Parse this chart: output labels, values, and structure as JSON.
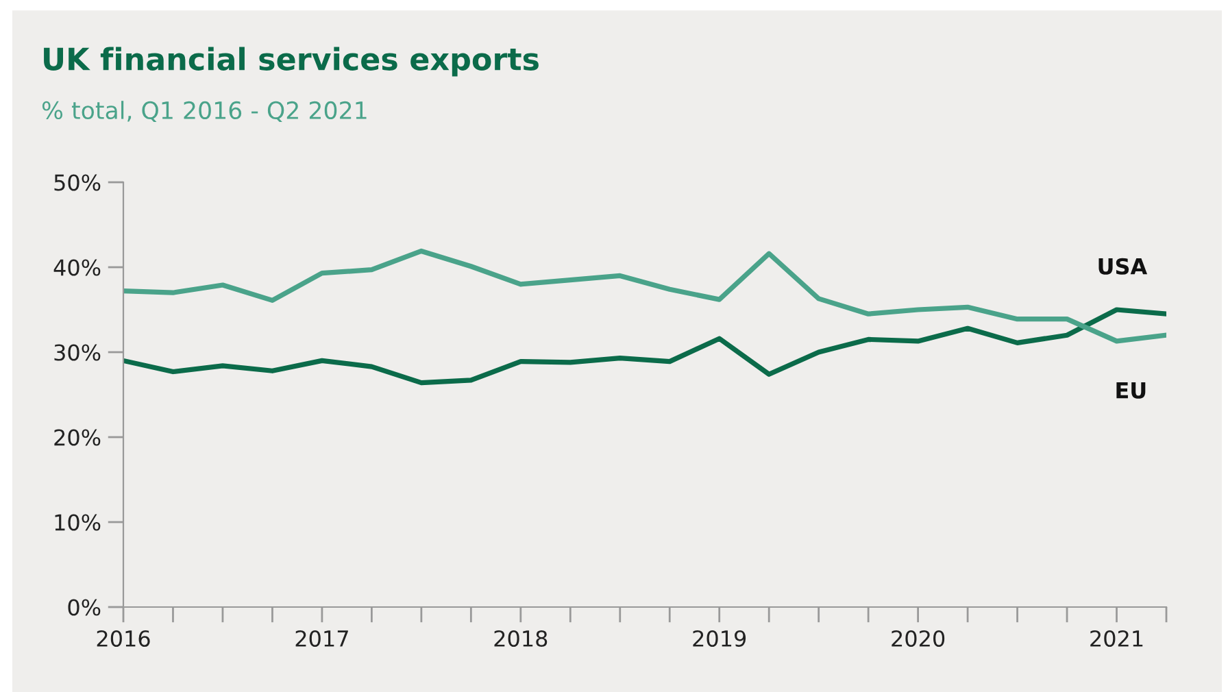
{
  "chart_data": {
    "type": "line",
    "title": "UK financial services exports",
    "subtitle": "% total, Q1 2016 - Q2 2021",
    "x": [
      2016,
      2016.25,
      2016.5,
      2016.75,
      2017,
      2017.25,
      2017.5,
      2017.75,
      2018,
      2018.25,
      2018.5,
      2018.75,
      2019,
      2019.25,
      2019.5,
      2019.75,
      2020,
      2020.25,
      2020.5,
      2020.75,
      2021,
      2021.25
    ],
    "series": [
      {
        "name": "USA",
        "color": "#0b6b4a",
        "values": [
          29.0,
          27.7,
          28.4,
          27.8,
          29.0,
          28.3,
          26.4,
          26.7,
          28.9,
          28.8,
          29.3,
          28.9,
          31.6,
          27.4,
          30.0,
          31.5,
          31.3,
          32.8,
          31.1,
          32.0,
          35.0,
          34.5
        ]
      },
      {
        "name": "EU",
        "color": "#4aa38a",
        "values": [
          37.2,
          37.0,
          37.9,
          36.1,
          39.3,
          39.7,
          41.9,
          40.1,
          38.0,
          38.5,
          39.0,
          37.4,
          36.2,
          41.6,
          36.3,
          34.5,
          35.0,
          35.3,
          33.9,
          33.9,
          31.3,
          32.0
        ]
      }
    ],
    "xlim": [
      2016,
      2021.25
    ],
    "xticks": [
      2016,
      {
        "value": 2016.25,
        "label": null
      },
      {
        "value": 2016.5,
        "label": null
      },
      {
        "value": 2016.75,
        "label": null
      },
      2017,
      {
        "value": 2017.25,
        "label": null
      },
      {
        "value": 2017.5,
        "label": null
      },
      {
        "value": 2017.75,
        "label": null
      },
      2018,
      {
        "value": 2018.25,
        "label": null
      },
      {
        "value": 2018.5,
        "label": null
      },
      {
        "value": 2018.75,
        "label": null
      },
      2019,
      {
        "value": 2019.25,
        "label": null
      },
      {
        "value": 2019.5,
        "label": null
      },
      {
        "value": 2019.75,
        "label": null
      },
      2020,
      {
        "value": 2020.25,
        "label": null
      },
      {
        "value": 2020.5,
        "label": null
      },
      {
        "value": 2020.75,
        "label": null
      },
      2021,
      {
        "value": 2021.25,
        "label": null
      }
    ],
    "ylim": [
      0,
      50
    ],
    "yticks": [
      {
        "value": 0,
        "label": "0%"
      },
      {
        "value": 10,
        "label": "10%"
      },
      {
        "value": 20,
        "label": "20%"
      },
      {
        "value": 30,
        "label": "30%"
      },
      {
        "value": 40,
        "label": "40%"
      },
      {
        "value": 50,
        "label": "50%"
      }
    ],
    "grid": false,
    "legend": false,
    "marker": "none",
    "line_style": "solid"
  }
}
